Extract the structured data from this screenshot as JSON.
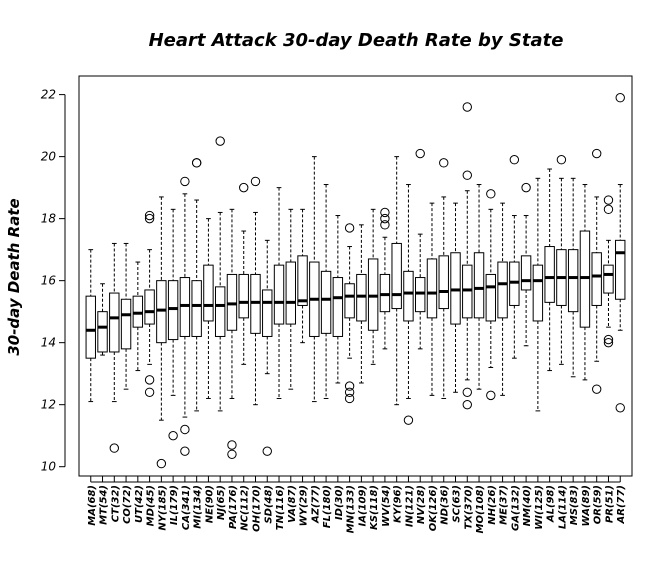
{
  "chart_data": {
    "type": "boxplot",
    "title": "Heart Attack 30-day Death Rate by State",
    "ylabel": "30-day Death Rate",
    "xlabel": "",
    "ylim": [
      9.7,
      22.6
    ],
    "yticks": [
      10,
      12,
      14,
      16,
      18,
      20,
      22
    ],
    "categories": [
      "MA(68)",
      "MT(54)",
      "CT(32)",
      "CO(72)",
      "UT(42)",
      "MD(45)",
      "NY(185)",
      "IL(179)",
      "CA(341)",
      "MI(134)",
      "NE(90)",
      "NJ(65)",
      "PA(176)",
      "NC(112)",
      "OH(170)",
      "SD(48)",
      "TN(116)",
      "VA(87)",
      "WY(29)",
      "AZ(77)",
      "FL(180)",
      "ID(30)",
      "MN(133)",
      "IA(109)",
      "KS(118)",
      "WV(54)",
      "KY(96)",
      "IN(121)",
      "NV(28)",
      "OK(126)",
      "ND(36)",
      "SC(63)",
      "TX(370)",
      "MO(108)",
      "NH(26)",
      "ME(37)",
      "GA(132)",
      "NM(40)",
      "WI(125)",
      "AL(98)",
      "LA(114)",
      "MS(83)",
      "WA(89)",
      "OR(59)",
      "PR(51)",
      "AR(77)"
    ],
    "boxes": [
      {
        "q1": 13.5,
        "median": 14.4,
        "q3": 15.5,
        "low": 12.1,
        "high": 17.0,
        "outliers": []
      },
      {
        "q1": 13.7,
        "median": 14.5,
        "q3": 15.0,
        "low": 13.6,
        "high": 15.9,
        "outliers": []
      },
      {
        "q1": 13.7,
        "median": 14.8,
        "q3": 15.6,
        "low": 12.1,
        "high": 17.2,
        "outliers": [
          10.6
        ]
      },
      {
        "q1": 13.8,
        "median": 14.9,
        "q3": 15.4,
        "low": 12.5,
        "high": 17.2,
        "outliers": []
      },
      {
        "q1": 14.5,
        "median": 14.95,
        "q3": 15.5,
        "low": 13.1,
        "high": 16.6,
        "outliers": []
      },
      {
        "q1": 14.6,
        "median": 15.0,
        "q3": 15.7,
        "low": 13.3,
        "high": 17.0,
        "outliers": [
          18.0,
          18.1,
          12.8,
          12.4
        ]
      },
      {
        "q1": 14.0,
        "median": 15.05,
        "q3": 16.0,
        "low": 11.5,
        "high": 18.7,
        "outliers": [
          10.1
        ]
      },
      {
        "q1": 14.1,
        "median": 15.1,
        "q3": 16.0,
        "low": 12.3,
        "high": 18.3,
        "outliers": [
          11.0
        ]
      },
      {
        "q1": 14.2,
        "median": 15.2,
        "q3": 16.1,
        "low": 11.6,
        "high": 18.8,
        "outliers": [
          19.2,
          11.2,
          10.5
        ]
      },
      {
        "q1": 14.2,
        "median": 15.2,
        "q3": 16.0,
        "low": 11.8,
        "high": 18.6,
        "outliers": [
          19.8,
          19.8
        ]
      },
      {
        "q1": 14.7,
        "median": 15.2,
        "q3": 16.5,
        "low": 12.2,
        "high": 18.0,
        "outliers": []
      },
      {
        "q1": 14.2,
        "median": 15.2,
        "q3": 15.8,
        "low": 11.8,
        "high": 18.2,
        "outliers": [
          20.5
        ]
      },
      {
        "q1": 14.4,
        "median": 15.25,
        "q3": 16.2,
        "low": 12.2,
        "high": 18.3,
        "outliers": [
          10.7,
          10.4
        ]
      },
      {
        "q1": 14.8,
        "median": 15.3,
        "q3": 16.2,
        "low": 13.3,
        "high": 17.6,
        "outliers": [
          19.0
        ]
      },
      {
        "q1": 14.3,
        "median": 15.3,
        "q3": 16.2,
        "low": 12.0,
        "high": 18.2,
        "outliers": [
          19.2
        ]
      },
      {
        "q1": 14.2,
        "median": 15.3,
        "q3": 15.7,
        "low": 13.0,
        "high": 17.3,
        "outliers": [
          10.5
        ]
      },
      {
        "q1": 14.6,
        "median": 15.3,
        "q3": 16.5,
        "low": 12.2,
        "high": 19.0,
        "outliers": []
      },
      {
        "q1": 14.6,
        "median": 15.3,
        "q3": 16.6,
        "low": 12.5,
        "high": 18.3,
        "outliers": []
      },
      {
        "q1": 15.2,
        "median": 15.35,
        "q3": 16.8,
        "low": 14.0,
        "high": 18.3,
        "outliers": []
      },
      {
        "q1": 14.2,
        "median": 15.4,
        "q3": 16.6,
        "low": 12.1,
        "high": 20.0,
        "outliers": []
      },
      {
        "q1": 14.3,
        "median": 15.4,
        "q3": 16.3,
        "low": 12.2,
        "high": 19.1,
        "outliers": []
      },
      {
        "q1": 14.2,
        "median": 15.45,
        "q3": 16.1,
        "low": 12.7,
        "high": 18.1,
        "outliers": []
      },
      {
        "q1": 14.8,
        "median": 15.5,
        "q3": 15.9,
        "low": 13.5,
        "high": 17.1,
        "outliers": [
          17.7,
          12.6,
          12.4,
          12.2
        ]
      },
      {
        "q1": 14.7,
        "median": 15.5,
        "q3": 16.2,
        "low": 12.7,
        "high": 17.8,
        "outliers": []
      },
      {
        "q1": 14.4,
        "median": 15.5,
        "q3": 16.7,
        "low": 13.3,
        "high": 18.3,
        "outliers": []
      },
      {
        "q1": 15.0,
        "median": 15.55,
        "q3": 16.2,
        "low": 13.8,
        "high": 17.4,
        "outliers": [
          18.2,
          18.0,
          17.8
        ]
      },
      {
        "q1": 15.1,
        "median": 15.55,
        "q3": 17.2,
        "low": 12.0,
        "high": 20.0,
        "outliers": []
      },
      {
        "q1": 14.7,
        "median": 15.6,
        "q3": 16.3,
        "low": 12.2,
        "high": 19.1,
        "outliers": [
          11.5
        ]
      },
      {
        "q1": 15.0,
        "median": 15.6,
        "q3": 16.1,
        "low": 13.8,
        "high": 17.5,
        "outliers": [
          20.1
        ]
      },
      {
        "q1": 14.8,
        "median": 15.6,
        "q3": 16.7,
        "low": 12.3,
        "high": 18.5,
        "outliers": []
      },
      {
        "q1": 15.1,
        "median": 15.65,
        "q3": 16.8,
        "low": 12.2,
        "high": 18.7,
        "outliers": [
          19.8
        ]
      },
      {
        "q1": 14.6,
        "median": 15.7,
        "q3": 16.9,
        "low": 12.4,
        "high": 18.5,
        "outliers": []
      },
      {
        "q1": 14.8,
        "median": 15.7,
        "q3": 16.5,
        "low": 12.8,
        "high": 18.9,
        "outliers": [
          21.6,
          19.4,
          12.4,
          12.0
        ]
      },
      {
        "q1": 14.8,
        "median": 15.75,
        "q3": 16.9,
        "low": 12.5,
        "high": 19.1,
        "outliers": []
      },
      {
        "q1": 14.7,
        "median": 15.8,
        "q3": 16.2,
        "low": 13.2,
        "high": 18.3,
        "outliers": [
          18.8,
          12.3
        ]
      },
      {
        "q1": 14.8,
        "median": 15.9,
        "q3": 16.6,
        "low": 12.3,
        "high": 18.5,
        "outliers": []
      },
      {
        "q1": 15.2,
        "median": 15.95,
        "q3": 16.6,
        "low": 13.5,
        "high": 18.1,
        "outliers": [
          19.9
        ]
      },
      {
        "q1": 15.7,
        "median": 16.0,
        "q3": 16.8,
        "low": 13.9,
        "high": 18.1,
        "outliers": [
          19.0
        ]
      },
      {
        "q1": 14.7,
        "median": 16.0,
        "q3": 16.5,
        "low": 11.8,
        "high": 19.3,
        "outliers": []
      },
      {
        "q1": 15.3,
        "median": 16.1,
        "q3": 17.1,
        "low": 13.1,
        "high": 19.6,
        "outliers": []
      },
      {
        "q1": 15.2,
        "median": 16.1,
        "q3": 17.0,
        "low": 13.3,
        "high": 19.3,
        "outliers": [
          19.9
        ]
      },
      {
        "q1": 15.0,
        "median": 16.1,
        "q3": 17.0,
        "low": 12.9,
        "high": 19.3,
        "outliers": []
      },
      {
        "q1": 14.5,
        "median": 16.1,
        "q3": 17.6,
        "low": 12.8,
        "high": 19.1,
        "outliers": []
      },
      {
        "q1": 15.2,
        "median": 16.15,
        "q3": 16.9,
        "low": 13.4,
        "high": 18.7,
        "outliers": [
          20.1,
          12.5
        ]
      },
      {
        "q1": 15.6,
        "median": 16.2,
        "q3": 16.5,
        "low": 14.5,
        "high": 17.3,
        "outliers": [
          18.6,
          18.3,
          14.1,
          14.0
        ]
      },
      {
        "q1": 15.4,
        "median": 16.9,
        "q3": 17.3,
        "low": 14.4,
        "high": 19.1,
        "outliers": [
          21.9,
          11.9
        ]
      }
    ]
  }
}
